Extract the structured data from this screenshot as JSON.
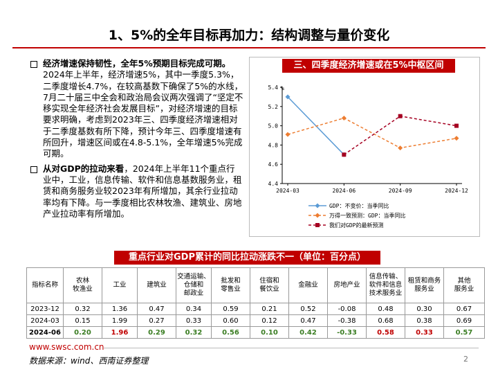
{
  "header": {
    "title": "1、5%的全年目标再加力：结构调整与量价变化"
  },
  "bullets": [
    {
      "bold": "经济增速保持韧性，全年5%预期目标完成可期。",
      "text": "2024年上半年，经济增速5%，其中一季度5.3%，二季度增长4.7%，在较高基数下确保了5%的水线，7月二十届三中全会和政治局会议两次强调了“坚定不移实现全年经济社会发展目标”，对经济增速的目标要求明确，考虑到2023年三、四季度经济增速相对于二季度基数有所下降，预计今年三、四季度增速有所回升，增速区间或在4.8-5.1%，全年增速5%完成可期。"
    },
    {
      "bold": "从对GDP的拉动来看",
      "text": "，2024年上半年11个重点行业中，工业，信息传输、软件和信息基数服务业，租赁和商务服务业较2023年有所增加，其余行业拉动率均有下降。与一季度相比农林牧渔、建筑业、房地产业拉动率有所增加。"
    }
  ],
  "chart_data": {
    "type": "line",
    "title": "三、四季度经济增速或在5%中枢区间",
    "y_unit": "%",
    "categories": [
      "2024-03",
      "2024-06",
      "2024-09",
      "2024-12"
    ],
    "series": [
      {
        "name": "GDP：不变价：当季同比",
        "color": "#5b9bd5",
        "dash": false,
        "marker": "diamond",
        "values": [
          5.3,
          4.7,
          null,
          null
        ]
      },
      {
        "name": "万得一致预测：GDP：当季同比",
        "color": "#ed7d31",
        "dash": true,
        "marker": "diamond",
        "values": [
          4.91,
          5.08,
          4.77,
          4.87
        ]
      },
      {
        "name": "我们对GDP的最新预测",
        "color": "#a50021",
        "dash": true,
        "marker": "square",
        "values": [
          null,
          4.7,
          5.1,
          5.0
        ]
      }
    ],
    "ylim": [
      4.4,
      5.4
    ],
    "yticks": [
      {
        "value": 4.4,
        "label": "4.4"
      },
      {
        "value": 4.6,
        "label": "4.6"
      },
      {
        "value": 4.8,
        "label": "4.8"
      },
      {
        "value": 5.0,
        "label": "5.0"
      },
      {
        "value": 5.2,
        "label": "5.2"
      },
      {
        "value": 5.4,
        "label": "5.4"
      }
    ]
  },
  "table": {
    "title": "重点行业对GDP累计的同比拉动涨跌不一（单位：百分点）",
    "headers": [
      "指标名称",
      "农林\n牧渔业",
      "工业",
      "建筑业",
      "交通运输、\n仓储和\n邮政业",
      "批发和\n零售业",
      "住宿和\n餐饮业",
      "金融业",
      "房地产业",
      "信息传输、\n软件和信息\n技术服务业",
      "租赁和商务\n服务业",
      "其他\n服务业"
    ],
    "rows": [
      [
        "2023-12",
        "0.32",
        "1.36",
        "0.47",
        "0.34",
        "0.59",
        "0.21",
        "0.52",
        "-0.08",
        "0.48",
        "0.30",
        "0.67"
      ],
      [
        "2024-03",
        "0.15",
        "1.99",
        "0.27",
        "0.33",
        "0.60",
        "0.12",
        "0.47",
        "-0.38",
        "0.68",
        "0.38",
        "0.69"
      ],
      [
        "2024-06",
        "0.20",
        "1.96",
        "0.29",
        "0.32",
        "0.56",
        "0.10",
        "0.42",
        "-0.33",
        "0.58",
        "0.33",
        "0.57"
      ]
    ],
    "last_row_colors": [
      "#000000",
      "#3a7d22",
      "#c00000",
      "#3a7d22",
      "#3a7d22",
      "#3a7d22",
      "#3a7d22",
      "#3a7d22",
      "#3a7d22",
      "#c00000",
      "#c00000",
      "#3a7d22"
    ]
  },
  "footer": {
    "url": "www.swsc.com.cn",
    "source": "数据来源：wind、西南证券整理",
    "page": "2"
  }
}
